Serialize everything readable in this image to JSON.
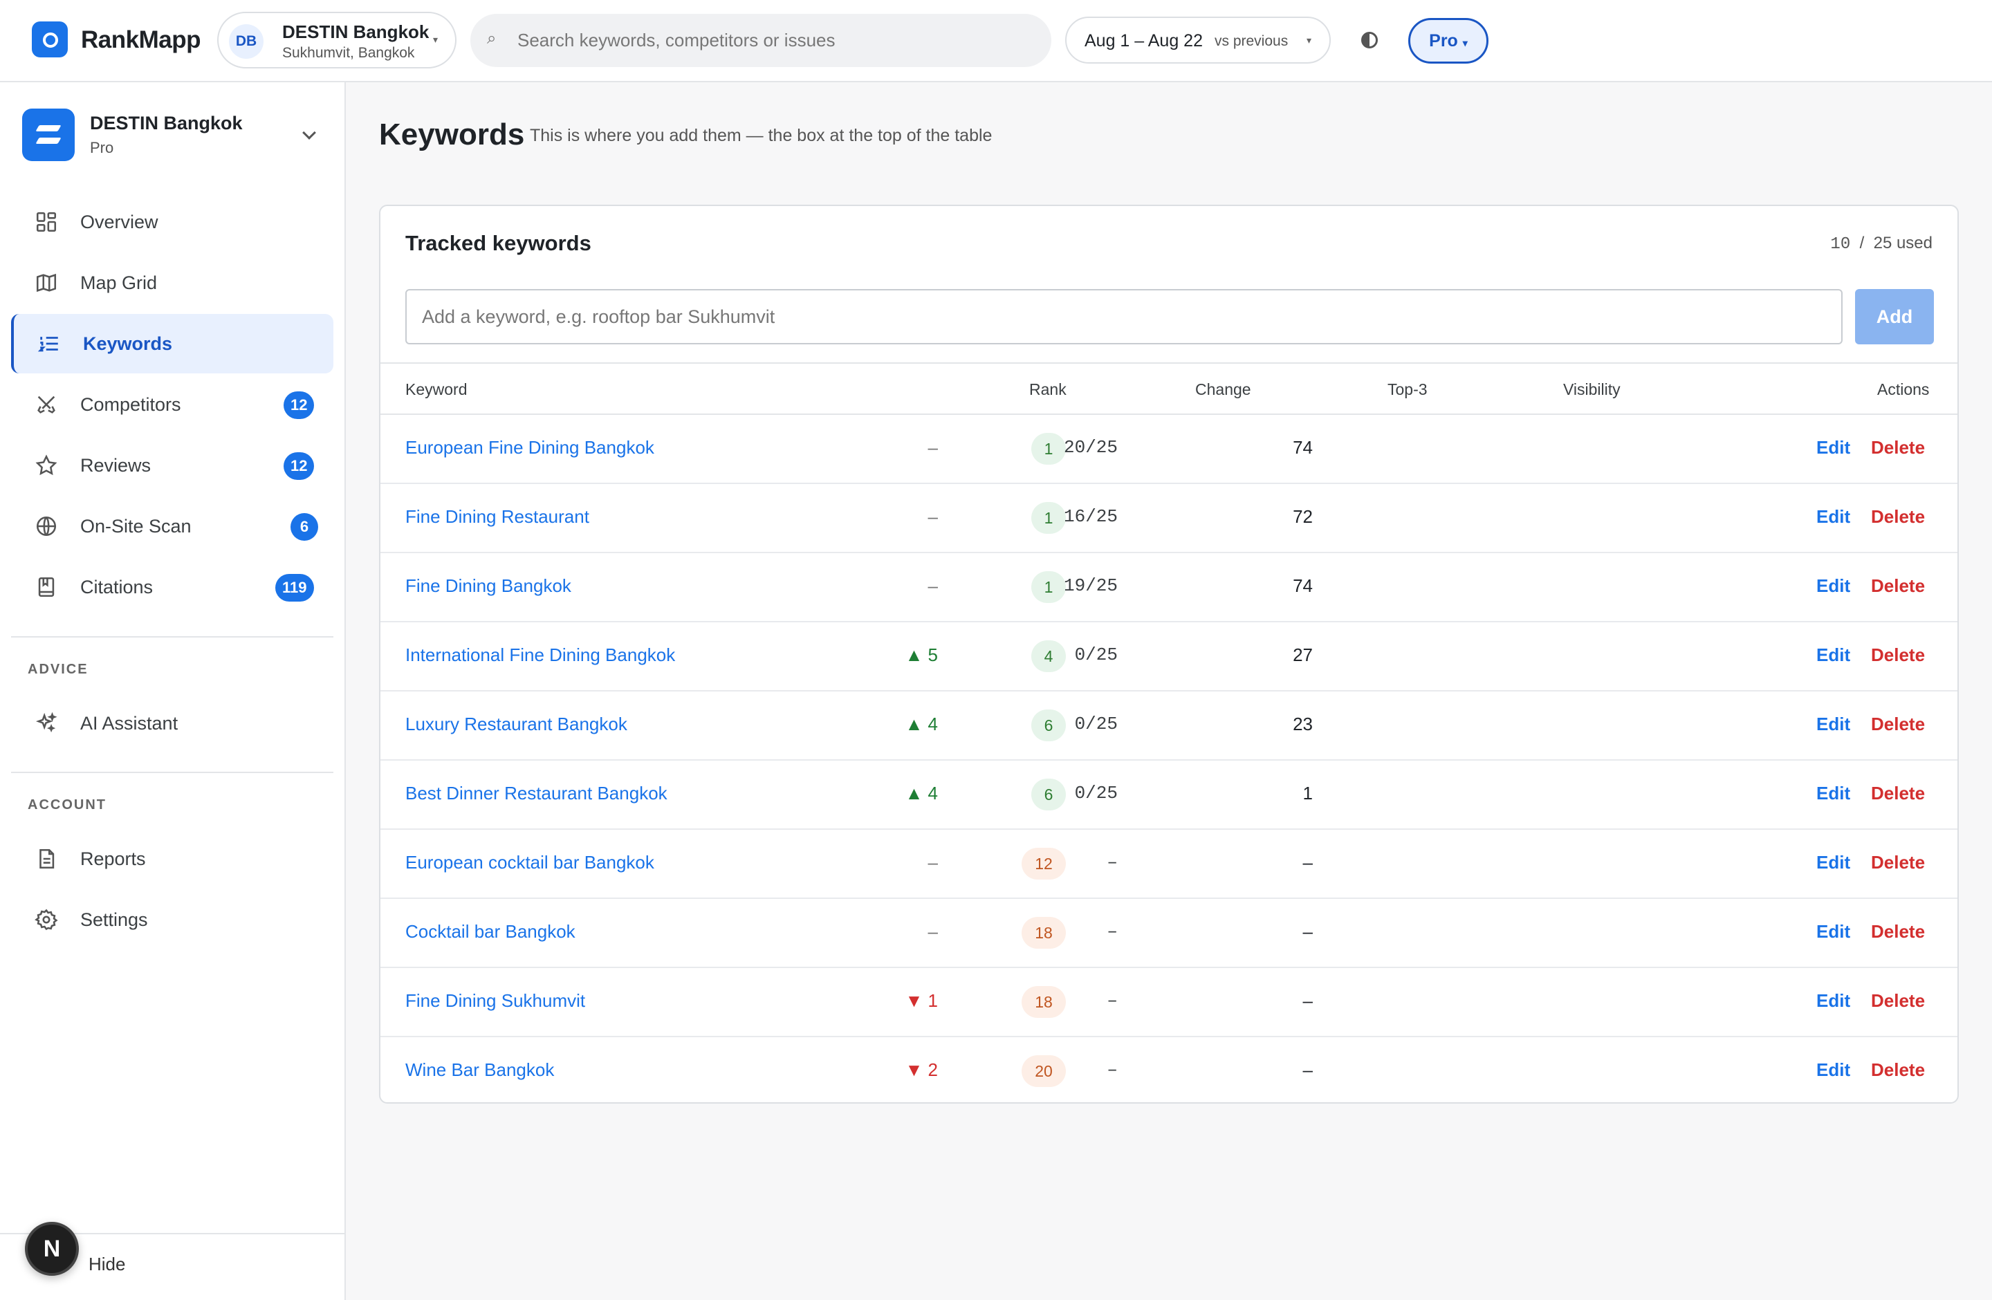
{
  "app": {
    "name": "RankMapp"
  },
  "topbar": {
    "location": {
      "initials": "DB",
      "name": "DESTIN Bangkok",
      "area": "Sukhumvit, Bangkok"
    },
    "search": {
      "placeholder": "Search keywords, competitors or issues"
    },
    "date": {
      "range": "Aug 1 – Aug 22",
      "compare": "vs previous"
    },
    "plan": "Pro"
  },
  "sidebar": {
    "workspace": {
      "name": "DESTIN Bangkok",
      "plan": "Pro"
    },
    "items": [
      {
        "label": "Overview",
        "icon": "grid-icon",
        "badge": ""
      },
      {
        "label": "Map Grid",
        "icon": "map-icon",
        "badge": ""
      },
      {
        "label": "Keywords",
        "icon": "list-icon",
        "badge": "",
        "active": true
      },
      {
        "label": "Competitors",
        "icon": "swords-icon",
        "badge": "12"
      },
      {
        "label": "Reviews",
        "icon": "star-icon",
        "badge": "12"
      },
      {
        "label": "On-Site Scan",
        "icon": "globe-icon",
        "badge": "6"
      },
      {
        "label": "Citations",
        "icon": "book-icon",
        "badge": "119"
      }
    ],
    "advice": {
      "heading": "ADVICE",
      "items": [
        {
          "label": "AI Assistant",
          "icon": "sparkles-icon"
        }
      ]
    },
    "account": {
      "heading": "ACCOUNT",
      "items": [
        {
          "label": "Reports",
          "icon": "document-icon"
        },
        {
          "label": "Settings",
          "icon": "gear-icon"
        }
      ]
    },
    "footer": {
      "avatar": "N",
      "hide_label": "Hide"
    }
  },
  "page": {
    "title": "Keywords",
    "subtitle": "This is where you add them — the box at the top of the table"
  },
  "card": {
    "title": "Tracked keywords",
    "usage": {
      "used": "10",
      "sep": "/",
      "total": "25 used"
    },
    "input": {
      "placeholder": "Add a keyword, e.g. rooftop bar Sukhumvit"
    },
    "add_label": "Add",
    "columns": {
      "keyword": "Keyword",
      "rank": "Rank",
      "change": "Change",
      "top3": "Top-3",
      "visibility": "Visibility",
      "actions": "Actions"
    },
    "edit_label": "Edit",
    "delete_label": "Delete",
    "rows": [
      {
        "keyword": "European Fine Dining Bangkok",
        "rank": "1",
        "rank_tier": "good",
        "change": "–",
        "dir": "flat",
        "top3": "20/25",
        "visibility": "74"
      },
      {
        "keyword": "Fine Dining Restaurant",
        "rank": "1",
        "rank_tier": "good",
        "change": "–",
        "dir": "flat",
        "top3": "16/25",
        "visibility": "72"
      },
      {
        "keyword": "Fine Dining Bangkok",
        "rank": "1",
        "rank_tier": "good",
        "change": "–",
        "dir": "flat",
        "top3": "19/25",
        "visibility": "74"
      },
      {
        "keyword": "International Fine Dining Bangkok",
        "rank": "4",
        "rank_tier": "good",
        "change": "▲ 5",
        "dir": "up",
        "top3": "0/25",
        "visibility": "27"
      },
      {
        "keyword": "Luxury Restaurant Bangkok",
        "rank": "6",
        "rank_tier": "good",
        "change": "▲ 4",
        "dir": "up",
        "top3": "0/25",
        "visibility": "23"
      },
      {
        "keyword": "Best Dinner Restaurant Bangkok",
        "rank": "6",
        "rank_tier": "good",
        "change": "▲ 4",
        "dir": "up",
        "top3": "0/25",
        "visibility": "1"
      },
      {
        "keyword": "European cocktail bar Bangkok",
        "rank": "12",
        "rank_tier": "mid",
        "change": "–",
        "dir": "flat",
        "top3": "–",
        "visibility": "–"
      },
      {
        "keyword": "Cocktail bar Bangkok",
        "rank": "18",
        "rank_tier": "mid",
        "change": "–",
        "dir": "flat",
        "top3": "–",
        "visibility": "–"
      },
      {
        "keyword": "Fine Dining Sukhumvit",
        "rank": "18",
        "rank_tier": "mid",
        "change": "▼ 1",
        "dir": "down",
        "top3": "–",
        "visibility": "–"
      },
      {
        "keyword": "Wine Bar Bangkok",
        "rank": "20",
        "rank_tier": "mid",
        "change": "▼ 2",
        "dir": "down",
        "top3": "–",
        "visibility": "–"
      }
    ]
  },
  "colors": {
    "accent": "#1a73e8",
    "danger": "#d32f2f",
    "success": "#1e7e34"
  }
}
